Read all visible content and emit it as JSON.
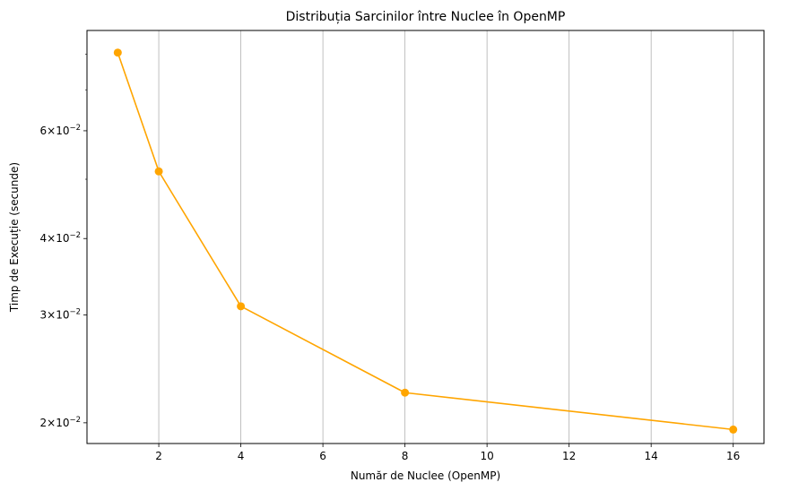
{
  "chart_data": {
    "type": "line",
    "title": "Distribuția Sarcinilor între Nuclee în OpenMP",
    "xlabel": "Număr de Nuclee (OpenMP)",
    "ylabel": "Timp de Execuție (secunde)",
    "x": [
      1,
      2,
      4,
      8,
      16
    ],
    "series": [
      {
        "values": [
          0.0805,
          0.0515,
          0.031,
          0.0224,
          0.0195
        ],
        "color": "#FFA500",
        "marker": "circle"
      }
    ],
    "xlim": [
      0.25,
      16.75
    ],
    "ylim": [
      0.0185,
      0.0875
    ],
    "yscale": "log",
    "xticks": [
      2,
      4,
      6,
      8,
      10,
      12,
      14,
      16
    ],
    "xtick_labels": [
      "2",
      "4",
      "6",
      "8",
      "10",
      "12",
      "14",
      "16"
    ],
    "yticks": [
      0.02,
      0.03,
      0.04,
      0.06
    ],
    "ytick_mantissa": [
      "2",
      "3",
      "4",
      "6"
    ],
    "ytick_base": "10",
    "ytick_exponent": "−2",
    "ytick_sep": "×",
    "yminor_ticks": [
      0.05,
      0.07,
      0.08
    ],
    "grid": "vertical"
  }
}
